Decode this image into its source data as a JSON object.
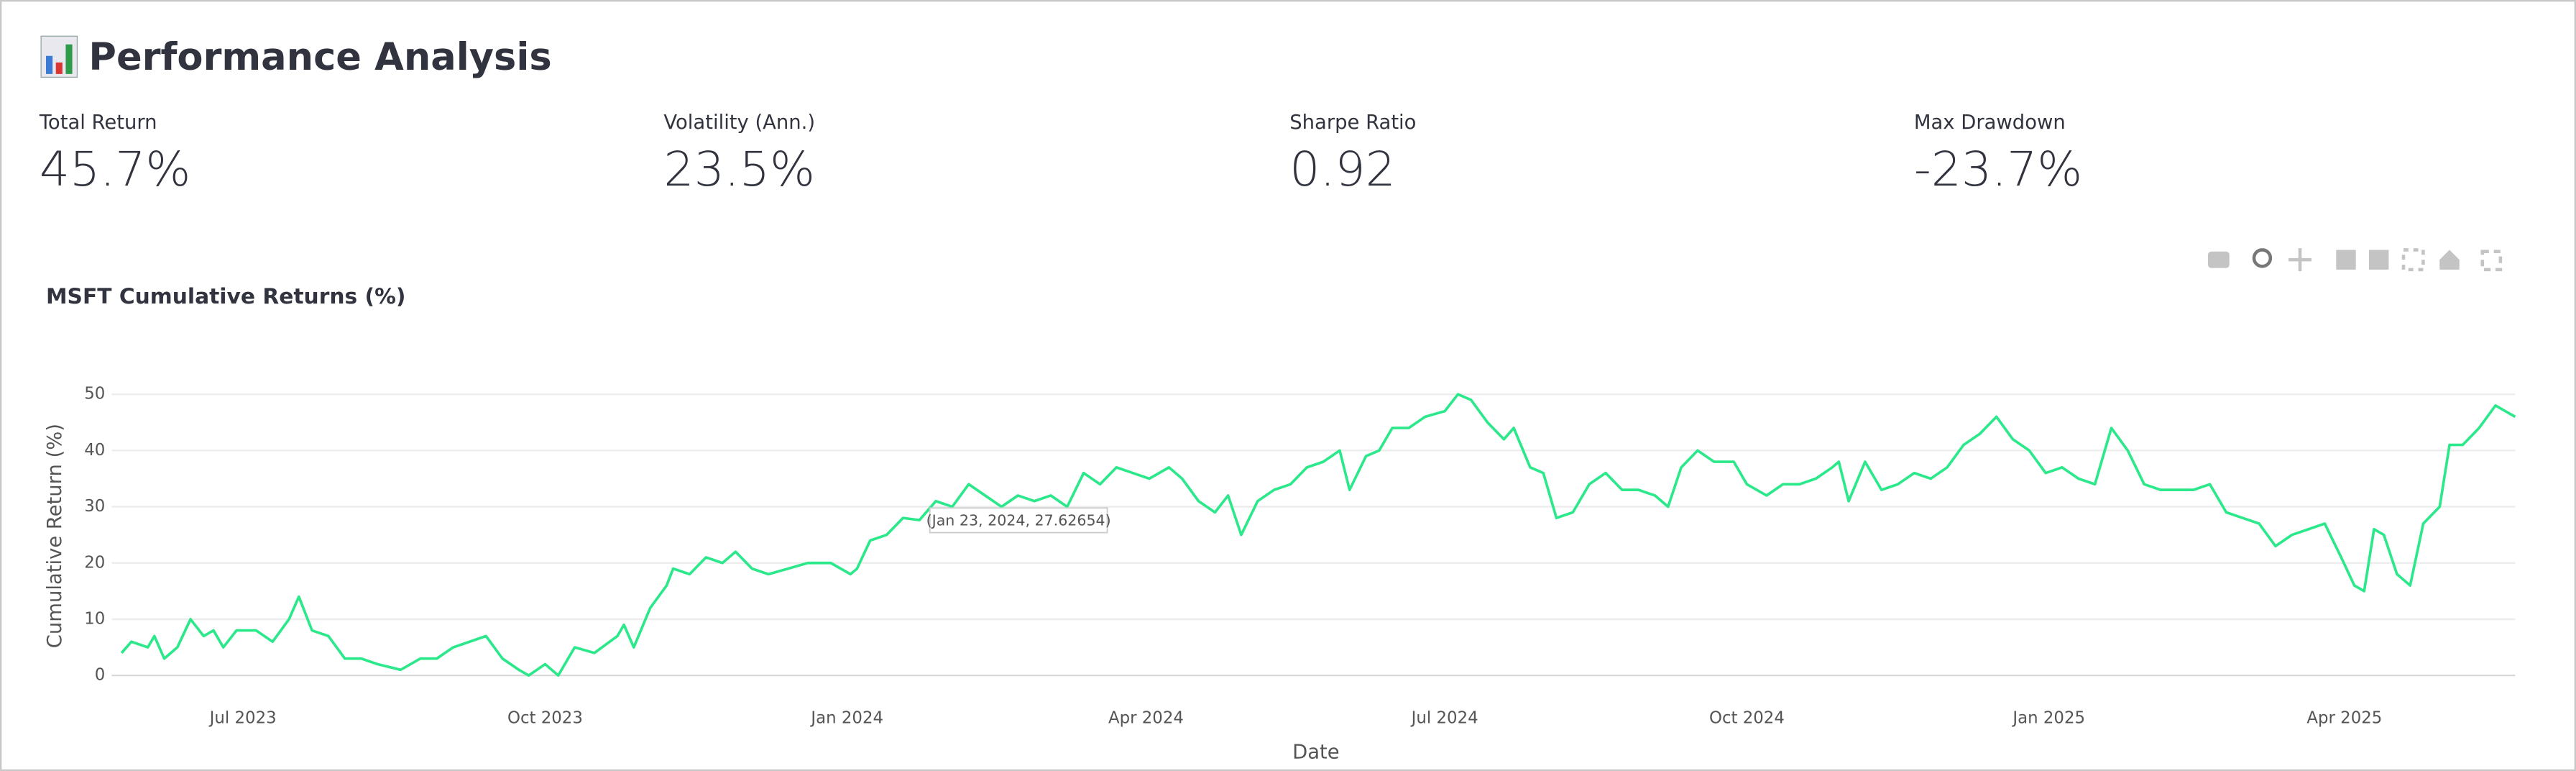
{
  "header": {
    "title": "Performance Analysis"
  },
  "metrics": [
    {
      "label": "Total Return",
      "value": "45.7%"
    },
    {
      "label": "Volatility (Ann.)",
      "value": "23.5%"
    },
    {
      "label": "Sharpe Ratio",
      "value": "0.92"
    },
    {
      "label": "Max Drawdown",
      "value": "-23.7%"
    }
  ],
  "chart_data": {
    "type": "line",
    "title": "MSFT Cumulative Returns (%)",
    "x_label": "Date",
    "y_label": "Cumulative Return (%)",
    "hover_label": "(Jan 23, 2024, 27.62654)",
    "x": [
      "2023-05-25",
      "2023-05-28",
      "2023-06-02",
      "2023-06-04",
      "2023-06-07",
      "2023-06-11",
      "2023-06-15",
      "2023-06-19",
      "2023-06-22",
      "2023-06-25",
      "2023-06-29",
      "2023-07-05",
      "2023-07-10",
      "2023-07-15",
      "2023-07-18",
      "2023-07-22",
      "2023-07-27",
      "2023-08-01",
      "2023-08-06",
      "2023-08-11",
      "2023-08-18",
      "2023-08-24",
      "2023-08-29",
      "2023-09-03",
      "2023-09-08",
      "2023-09-13",
      "2023-09-18",
      "2023-09-23",
      "2023-09-26",
      "2023-10-01",
      "2023-10-05",
      "2023-10-10",
      "2023-10-16",
      "2023-10-23",
      "2023-10-25",
      "2023-10-28",
      "2023-11-02",
      "2023-11-07",
      "2023-11-09",
      "2023-11-14",
      "2023-11-19",
      "2023-11-24",
      "2023-11-28",
      "2023-12-03",
      "2023-12-08",
      "2023-12-14",
      "2023-12-20",
      "2023-12-27",
      "2024-01-02",
      "2024-01-04",
      "2024-01-08",
      "2024-01-13",
      "2024-01-18",
      "2024-01-23",
      "2024-01-28",
      "2024-02-02",
      "2024-02-07",
      "2024-02-12",
      "2024-02-17",
      "2024-02-22",
      "2024-02-27",
      "2024-03-03",
      "2024-03-08",
      "2024-03-13",
      "2024-03-18",
      "2024-03-23",
      "2024-03-28",
      "2024-04-02",
      "2024-04-08",
      "2024-04-12",
      "2024-04-17",
      "2024-04-22",
      "2024-04-26",
      "2024-04-30",
      "2024-05-05",
      "2024-05-10",
      "2024-05-15",
      "2024-05-20",
      "2024-05-25",
      "2024-05-30",
      "2024-06-02",
      "2024-06-07",
      "2024-06-11",
      "2024-06-15",
      "2024-06-20",
      "2024-06-25",
      "2024-07-01",
      "2024-07-05",
      "2024-07-09",
      "2024-07-14",
      "2024-07-19",
      "2024-07-22",
      "2024-07-27",
      "2024-07-31",
      "2024-08-04",
      "2024-08-09",
      "2024-08-14",
      "2024-08-19",
      "2024-08-24",
      "2024-08-29",
      "2024-09-03",
      "2024-09-07",
      "2024-09-11",
      "2024-09-16",
      "2024-09-21",
      "2024-09-27",
      "2024-10-01",
      "2024-10-07",
      "2024-10-12",
      "2024-10-17",
      "2024-10-22",
      "2024-10-27",
      "2024-10-29",
      "2024-11-01",
      "2024-11-06",
      "2024-11-11",
      "2024-11-16",
      "2024-11-21",
      "2024-11-26",
      "2024-12-01",
      "2024-12-06",
      "2024-12-11",
      "2024-12-16",
      "2024-12-21",
      "2024-12-26",
      "2024-12-31",
      "2025-01-05",
      "2025-01-10",
      "2025-01-15",
      "2025-01-20",
      "2025-01-25",
      "2025-01-30",
      "2025-02-04",
      "2025-02-09",
      "2025-02-14",
      "2025-02-19",
      "2025-02-24",
      "2025-03-01",
      "2025-03-06",
      "2025-03-11",
      "2025-03-16",
      "2025-03-21",
      "2025-03-26",
      "2025-03-31",
      "2025-04-04",
      "2025-04-07",
      "2025-04-10",
      "2025-04-13",
      "2025-04-17",
      "2025-04-21",
      "2025-04-25",
      "2025-04-30",
      "2025-05-03",
      "2025-05-07",
      "2025-05-12",
      "2025-05-17",
      "2025-05-20",
      "2025-05-23"
    ],
    "series": [
      {
        "name": "MSFT",
        "color": "#2be88a",
        "values": [
          4,
          6,
          5,
          7,
          3,
          5,
          10,
          7,
          8,
          5,
          8,
          8,
          6,
          10,
          14,
          8,
          7,
          3,
          3,
          2,
          1,
          3,
          3,
          5,
          6,
          7,
          3,
          1,
          0,
          2,
          0,
          5,
          4,
          7,
          9,
          5,
          12,
          16,
          19,
          18,
          21,
          20,
          22,
          19,
          18,
          19,
          20,
          20,
          18,
          19,
          24,
          25,
          28,
          27.62654,
          31,
          30,
          34,
          32,
          30,
          32,
          31,
          32,
          30,
          36,
          34,
          37,
          36,
          35,
          37,
          35,
          31,
          29,
          32,
          25,
          31,
          33,
          34,
          37,
          38,
          40,
          33,
          39,
          40,
          44,
          44,
          46,
          47,
          50,
          49,
          45,
          42,
          44,
          37,
          36,
          28,
          29,
          34,
          36,
          33,
          33,
          32,
          30,
          37,
          40,
          38,
          38,
          34,
          32,
          34,
          34,
          35,
          37,
          38,
          31,
          38,
          33,
          34,
          36,
          35,
          37,
          41,
          43,
          46,
          42,
          40,
          36,
          37,
          35,
          34,
          44,
          40,
          34,
          33,
          33,
          33,
          34,
          29,
          28,
          27,
          23,
          25,
          26,
          27,
          21,
          16,
          15,
          26,
          25,
          18,
          16,
          27,
          30,
          41,
          41,
          44,
          48,
          47,
          46
        ]
      }
    ],
    "xlim": [
      "2023-05-22",
      "2025-05-23"
    ],
    "xticks": [
      {
        "value": "2023-07-01",
        "label": "Jul 2023"
      },
      {
        "value": "2023-10-01",
        "label": "Oct 2023"
      },
      {
        "value": "2024-01-01",
        "label": "Jan 2024"
      },
      {
        "value": "2024-04-01",
        "label": "Apr 2024"
      },
      {
        "value": "2024-07-01",
        "label": "Jul 2024"
      },
      {
        "value": "2024-10-01",
        "label": "Oct 2024"
      },
      {
        "value": "2025-01-01",
        "label": "Jan 2025"
      },
      {
        "value": "2025-04-01",
        "label": "Apr 2025"
      }
    ],
    "ylim": [
      -1.5,
      52
    ],
    "yticks": [
      0,
      10,
      20,
      30,
      40,
      50
    ],
    "grid": true
  }
}
